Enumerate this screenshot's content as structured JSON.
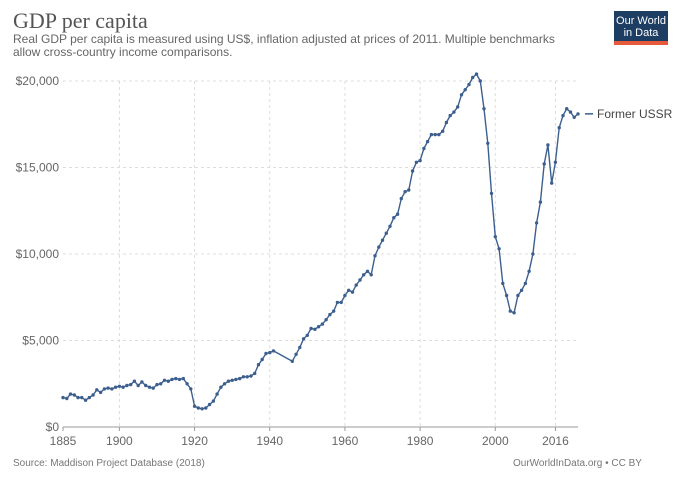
{
  "page": {
    "title": "GDP per capita",
    "subtitle": "Real GDP per capita is measured using US$, inflation adjusted at prices of 2011. Multiple benchmarks allow cross-country income comparisons.",
    "logo_line1": "Our World",
    "logo_line2": "in Data",
    "source": "Source: Maddison Project Database (2018)",
    "license": "OurWorldInData.org • CC BY"
  },
  "colors": {
    "series": "#3c5f8e",
    "grid": "#dddddd",
    "logo_bg": "#1d3d63",
    "logo_bar": "#e65a3c"
  },
  "chart_data": {
    "type": "line",
    "title": "GDP per capita",
    "xlabel": "",
    "ylabel": "",
    "xlim": [
      1885,
      2016
    ],
    "ylim": [
      0,
      20000
    ],
    "x_ticks": [
      "1885",
      "1900",
      "1920",
      "1940",
      "1960",
      "1980",
      "2000",
      "2016"
    ],
    "y_ticks": [
      "$0",
      "$5,000",
      "$10,000",
      "$15,000",
      "$20,000"
    ],
    "legend": "right",
    "grid": true,
    "series": [
      {
        "name": "Former USSR",
        "points": [
          [
            1885,
            1700
          ],
          [
            1886,
            1650
          ],
          [
            1887,
            1900
          ],
          [
            1888,
            1850
          ],
          [
            1889,
            1700
          ],
          [
            1890,
            1700
          ],
          [
            1891,
            1550
          ],
          [
            1892,
            1700
          ],
          [
            1893,
            1850
          ],
          [
            1894,
            2150
          ],
          [
            1895,
            2000
          ],
          [
            1896,
            2200
          ],
          [
            1897,
            2250
          ],
          [
            1898,
            2200
          ],
          [
            1899,
            2300
          ],
          [
            1900,
            2350
          ],
          [
            1901,
            2300
          ],
          [
            1902,
            2400
          ],
          [
            1903,
            2450
          ],
          [
            1904,
            2650
          ],
          [
            1905,
            2400
          ],
          [
            1906,
            2600
          ],
          [
            1907,
            2400
          ],
          [
            1908,
            2300
          ],
          [
            1909,
            2250
          ],
          [
            1910,
            2450
          ],
          [
            1911,
            2500
          ],
          [
            1912,
            2700
          ],
          [
            1913,
            2650
          ],
          [
            1914,
            2750
          ],
          [
            1915,
            2800
          ],
          [
            1916,
            2750
          ],
          [
            1917,
            2800
          ],
          [
            1918,
            2500
          ],
          [
            1919,
            2200
          ],
          [
            1920,
            1200
          ],
          [
            1921,
            1100
          ],
          [
            1922,
            1050
          ],
          [
            1923,
            1100
          ],
          [
            1924,
            1300
          ],
          [
            1925,
            1500
          ],
          [
            1926,
            1900
          ],
          [
            1927,
            2300
          ],
          [
            1928,
            2500
          ],
          [
            1929,
            2650
          ],
          [
            1930,
            2700
          ],
          [
            1931,
            2750
          ],
          [
            1932,
            2800
          ],
          [
            1933,
            2900
          ],
          [
            1934,
            2900
          ],
          [
            1935,
            2950
          ],
          [
            1936,
            3100
          ],
          [
            1937,
            3600
          ],
          [
            1938,
            3900
          ],
          [
            1939,
            4250
          ],
          [
            1940,
            4300
          ],
          [
            1941,
            4400
          ],
          [
            1946,
            3800
          ],
          [
            1947,
            4200
          ],
          [
            1948,
            4600
          ],
          [
            1949,
            5100
          ],
          [
            1950,
            5300
          ],
          [
            1951,
            5700
          ],
          [
            1952,
            5650
          ],
          [
            1953,
            5800
          ],
          [
            1954,
            5950
          ],
          [
            1955,
            6200
          ],
          [
            1956,
            6500
          ],
          [
            1957,
            6700
          ],
          [
            1958,
            7200
          ],
          [
            1959,
            7200
          ],
          [
            1960,
            7600
          ],
          [
            1961,
            7900
          ],
          [
            1962,
            7800
          ],
          [
            1963,
            8200
          ],
          [
            1964,
            8500
          ],
          [
            1965,
            8800
          ],
          [
            1966,
            9000
          ],
          [
            1967,
            8800
          ],
          [
            1968,
            9900
          ],
          [
            1969,
            10400
          ],
          [
            1970,
            10800
          ],
          [
            1971,
            11200
          ],
          [
            1972,
            11600
          ],
          [
            1973,
            12100
          ],
          [
            1974,
            12300
          ],
          [
            1975,
            13200
          ],
          [
            1976,
            13600
          ],
          [
            1977,
            13700
          ],
          [
            1978,
            14800
          ],
          [
            1979,
            15300
          ],
          [
            1980,
            15400
          ],
          [
            1981,
            16100
          ],
          [
            1982,
            16500
          ],
          [
            1983,
            16900
          ],
          [
            1984,
            16900
          ],
          [
            1985,
            16900
          ],
          [
            1986,
            17100
          ],
          [
            1987,
            17600
          ],
          [
            1988,
            18000
          ],
          [
            1989,
            18200
          ],
          [
            1990,
            18500
          ],
          [
            1991,
            19200
          ],
          [
            1992,
            19500
          ],
          [
            1993,
            19800
          ],
          [
            1994,
            20200
          ],
          [
            1995,
            20400
          ],
          [
            1996,
            20000
          ],
          [
            1997,
            18400
          ],
          [
            1998,
            16400
          ],
          [
            1999,
            13500
          ],
          [
            2000,
            11000
          ],
          [
            2001,
            10300
          ],
          [
            2002,
            8300
          ],
          [
            2003,
            7600
          ],
          [
            2004,
            6700
          ],
          [
            2005,
            6600
          ],
          [
            2006,
            7600
          ],
          [
            2007,
            7900
          ],
          [
            2008,
            8300
          ],
          [
            2009,
            9000
          ],
          [
            2010,
            10000
          ],
          [
            2011,
            11800
          ],
          [
            2012,
            13000
          ],
          [
            2013,
            15200
          ],
          [
            2014,
            16300
          ],
          [
            2015,
            14100
          ],
          [
            2016,
            15300
          ],
          [
            2017,
            17300
          ],
          [
            2018,
            18000
          ],
          [
            2019,
            18400
          ],
          [
            2020,
            18200
          ],
          [
            2021,
            17900
          ],
          [
            2022,
            18100
          ]
        ]
      }
    ]
  }
}
